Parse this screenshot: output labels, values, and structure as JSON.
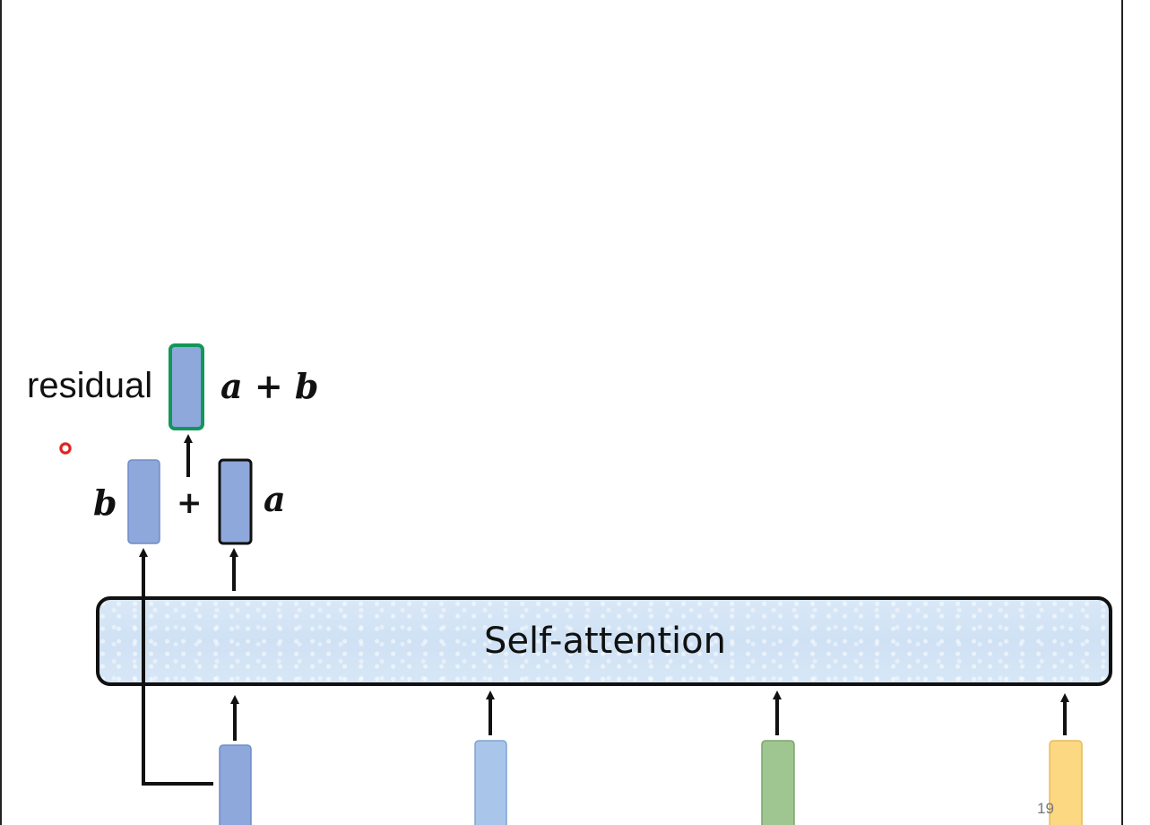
{
  "labels": {
    "residual": "residual",
    "a_plus_b": "a + b",
    "b": "b",
    "a": "a",
    "plus": "+",
    "self_attention": "Self-attention"
  },
  "footer": {
    "page_number": "19"
  },
  "colors": {
    "vector_blue": "#8fa8dc",
    "vector_light_blue": "#a9c6ea",
    "vector_green": "#9fc591",
    "vector_yellow": "#fdd882",
    "residual_border": "#13965a",
    "attention_fill": "#d6e6f5",
    "cursor": "#e02020"
  }
}
